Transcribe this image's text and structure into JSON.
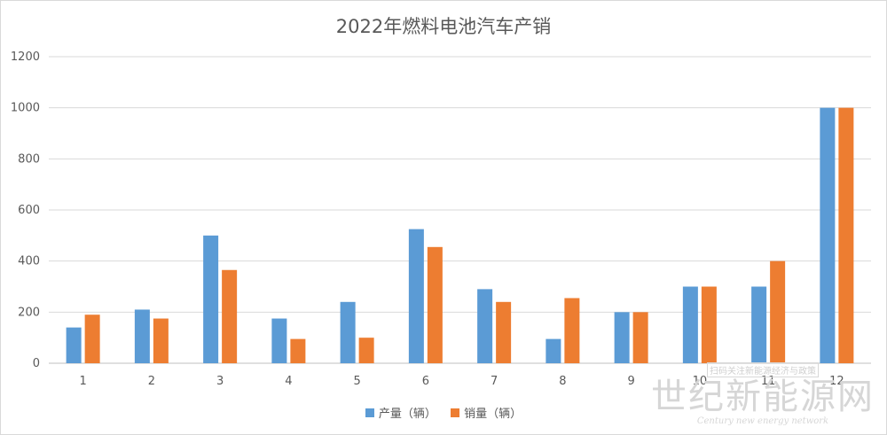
{
  "chart_data": {
    "type": "bar",
    "title": "2022年燃料电池汽车产销",
    "categories": [
      "1",
      "2",
      "3",
      "4",
      "5",
      "6",
      "7",
      "8",
      "9",
      "10",
      "11",
      "12"
    ],
    "series": [
      {
        "name": "产量（辆）",
        "color": "#5b9bd5",
        "values": [
          140,
          210,
          500,
          175,
          240,
          525,
          290,
          95,
          200,
          300,
          300,
          1000
        ]
      },
      {
        "name": "销量（辆）",
        "color": "#ed7d31",
        "values": [
          190,
          175,
          365,
          95,
          100,
          455,
          240,
          255,
          200,
          300,
          400,
          1000
        ]
      }
    ],
    "yticks": [
      0,
      200,
      400,
      600,
      800,
      1000,
      1200
    ],
    "ylim": [
      0,
      1200
    ],
    "grid": true,
    "legend_position": "bottom"
  },
  "watermark": {
    "small": "扫码关注新能源经济与政策",
    "big": "世纪新能源网",
    "english": "Century new energy network"
  }
}
